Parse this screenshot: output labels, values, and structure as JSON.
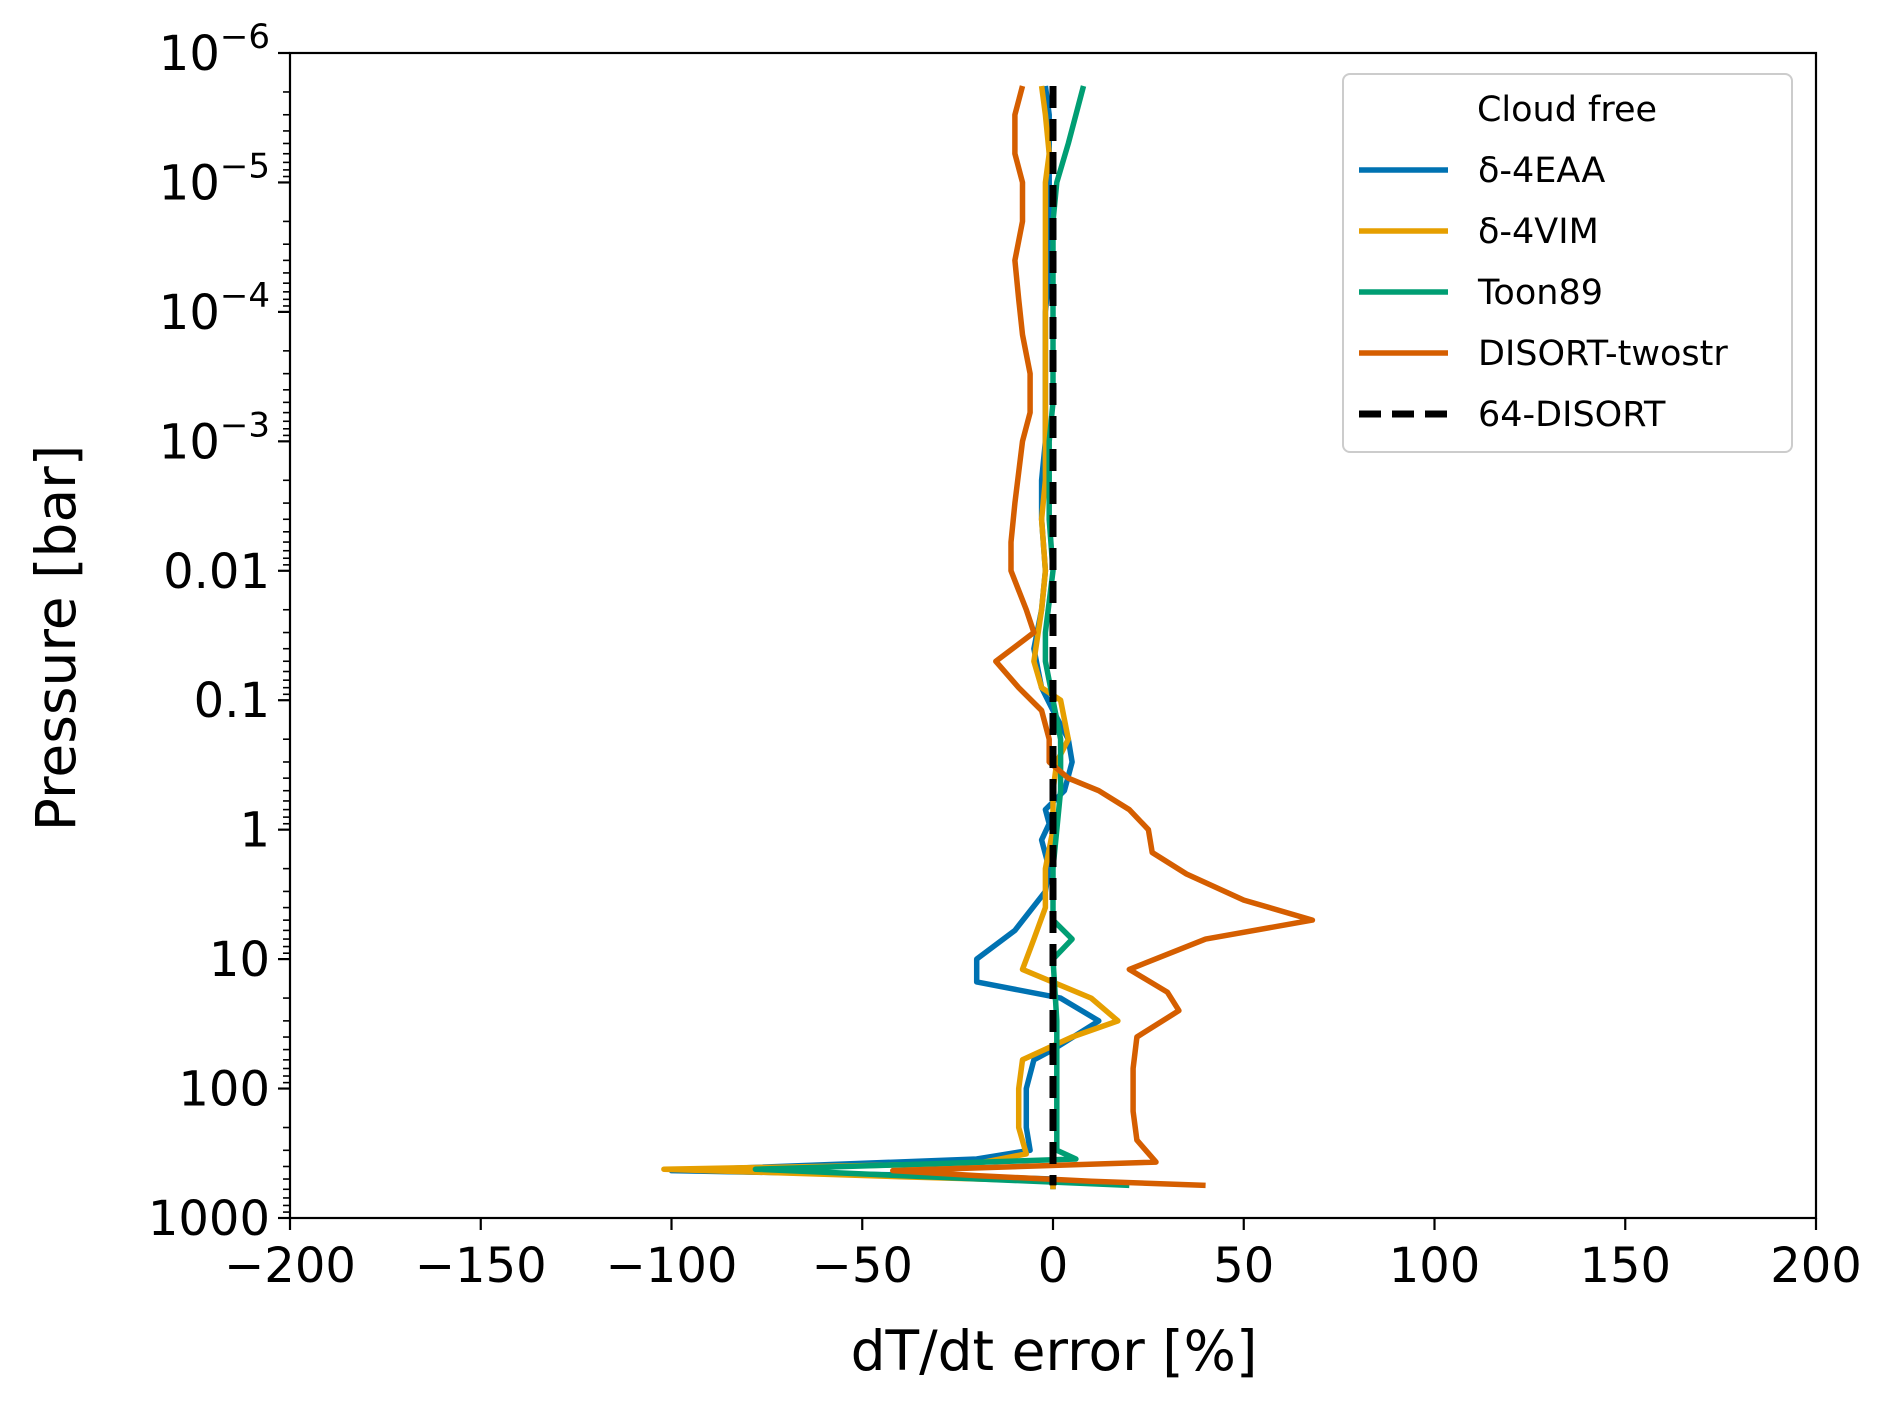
{
  "chart_data": {
    "type": "line",
    "xlabel": "dT/dt error [%]",
    "ylabel": "Pressure [bar]",
    "xlim": [
      -200,
      200
    ],
    "ylim": [
      1e-06,
      1000
    ],
    "yscale": "log",
    "y_inverted": true,
    "grid": false,
    "legend_position": "top-right",
    "legend_title": "Cloud free",
    "x_ticks": [
      -200,
      -150,
      -100,
      -50,
      0,
      50,
      100,
      150,
      200
    ],
    "x_tick_labels": [
      "−200",
      "−150",
      "−100",
      "−50",
      "0",
      "50",
      "100",
      "150",
      "200"
    ],
    "y_ticks": [
      {
        "value": 1e-06,
        "base": "10",
        "exp": "−6"
      },
      {
        "value": 1e-05,
        "base": "10",
        "exp": "−5"
      },
      {
        "value": 0.0001,
        "base": "10",
        "exp": "−4"
      },
      {
        "value": 0.001,
        "base": "10",
        "exp": "−3"
      },
      {
        "value": 0.01,
        "label": "0.01"
      },
      {
        "value": 0.1,
        "label": "0.1"
      },
      {
        "value": 1,
        "label": "1"
      },
      {
        "value": 10,
        "label": "10"
      },
      {
        "value": 100,
        "label": "100"
      },
      {
        "value": 1000,
        "label": "1000"
      }
    ],
    "series": [
      {
        "name": "δ-4EAA",
        "color": "#0072b2",
        "dash": "solid",
        "points": [
          [
            -2,
            1.8e-06
          ],
          [
            -1,
            3e-06
          ],
          [
            -1,
            6e-06
          ],
          [
            -1,
            1e-05
          ],
          [
            -1,
            2e-05
          ],
          [
            -1,
            5e-05
          ],
          [
            -2,
            0.0001
          ],
          [
            -2,
            0.0002
          ],
          [
            -2,
            0.0005
          ],
          [
            -2,
            0.001
          ],
          [
            -3,
            0.002
          ],
          [
            -3,
            0.004
          ],
          [
            -2,
            0.01
          ],
          [
            -3,
            0.02
          ],
          [
            -5,
            0.04
          ],
          [
            -3,
            0.08
          ],
          [
            0,
            0.12
          ],
          [
            4,
            0.2
          ],
          [
            5,
            0.3
          ],
          [
            3,
            0.5
          ],
          [
            -2,
            0.7
          ],
          [
            -1,
            0.9
          ],
          [
            -3,
            1.2
          ],
          [
            -1,
            2
          ],
          [
            -2,
            3
          ],
          [
            -10,
            6
          ],
          [
            -20,
            10
          ],
          [
            -20,
            15
          ],
          [
            2,
            20
          ],
          [
            12,
            30
          ],
          [
            0,
            50
          ],
          [
            -5,
            60
          ],
          [
            -7,
            100
          ],
          [
            -7,
            200
          ],
          [
            -6,
            300
          ],
          [
            -20,
            350
          ],
          [
            -100,
            430
          ],
          [
            -30,
            470
          ],
          [
            0,
            500
          ],
          [
            0,
            600
          ]
        ]
      },
      {
        "name": "δ-4VIM",
        "color": "#e69f00",
        "dash": "solid",
        "points": [
          [
            -3,
            1.8e-06
          ],
          [
            -2,
            3e-06
          ],
          [
            -1,
            6e-06
          ],
          [
            -2,
            1e-05
          ],
          [
            -2,
            2e-05
          ],
          [
            -2,
            5e-05
          ],
          [
            -2,
            0.0001
          ],
          [
            -2,
            0.0002
          ],
          [
            -2,
            0.0005
          ],
          [
            -2,
            0.001
          ],
          [
            -2,
            0.002
          ],
          [
            -3,
            0.004
          ],
          [
            -2,
            0.01
          ],
          [
            -3,
            0.02
          ],
          [
            -5,
            0.05
          ],
          [
            -3,
            0.08
          ],
          [
            2,
            0.1
          ],
          [
            4,
            0.2
          ],
          [
            1,
            0.3
          ],
          [
            0,
            0.5
          ],
          [
            0,
            1
          ],
          [
            -2,
            2
          ],
          [
            -2,
            4
          ],
          [
            -5,
            7
          ],
          [
            -8,
            12
          ],
          [
            10,
            20
          ],
          [
            17,
            30
          ],
          [
            5,
            40
          ],
          [
            -8,
            60
          ],
          [
            -9,
            100
          ],
          [
            -9,
            200
          ],
          [
            -7,
            320
          ],
          [
            -20,
            380
          ],
          [
            -102,
            420
          ],
          [
            -40,
            480
          ],
          [
            0,
            520
          ],
          [
            0,
            600
          ]
        ]
      },
      {
        "name": "Toon89",
        "color": "#009e73",
        "dash": "solid",
        "points": [
          [
            8,
            1.8e-06
          ],
          [
            6,
            3e-06
          ],
          [
            4,
            5e-06
          ],
          [
            1,
            1e-05
          ],
          [
            0,
            2e-05
          ],
          [
            0,
            5e-05
          ],
          [
            0,
            0.0001
          ],
          [
            0,
            0.0002
          ],
          [
            0,
            0.0005
          ],
          [
            -1,
            0.001
          ],
          [
            -1,
            0.002
          ],
          [
            -1,
            0.004
          ],
          [
            0,
            0.01
          ],
          [
            -2,
            0.03
          ],
          [
            -2,
            0.05
          ],
          [
            0,
            0.1
          ],
          [
            2,
            0.2
          ],
          [
            2,
            0.5
          ],
          [
            1,
            1
          ],
          [
            0,
            2
          ],
          [
            0,
            5
          ],
          [
            5,
            7
          ],
          [
            0,
            10
          ],
          [
            1,
            30
          ],
          [
            1,
            100
          ],
          [
            1,
            200
          ],
          [
            1,
            300
          ],
          [
            6,
            350
          ],
          [
            -30,
            380
          ],
          [
            -78,
            420
          ],
          [
            -40,
            470
          ],
          [
            20,
            560
          ]
        ]
      },
      {
        "name": "DISORT-twostr",
        "color": "#d55e00",
        "dash": "solid",
        "points": [
          [
            -8,
            1.8e-06
          ],
          [
            -10,
            3e-06
          ],
          [
            -10,
            6e-06
          ],
          [
            -8,
            1e-05
          ],
          [
            -8,
            2e-05
          ],
          [
            -10,
            4e-05
          ],
          [
            -9,
            8e-05
          ],
          [
            -8,
            0.00015
          ],
          [
            -6,
            0.0003
          ],
          [
            -6,
            0.0006
          ],
          [
            -8,
            0.001
          ],
          [
            -10,
            0.003
          ],
          [
            -11,
            0.006
          ],
          [
            -11,
            0.01
          ],
          [
            -7,
            0.02
          ],
          [
            -5,
            0.03
          ],
          [
            -15,
            0.05
          ],
          [
            -9,
            0.08
          ],
          [
            -3,
            0.12
          ],
          [
            -1,
            0.2
          ],
          [
            -1,
            0.3
          ],
          [
            4,
            0.4
          ],
          [
            12,
            0.5
          ],
          [
            20,
            0.7
          ],
          [
            25,
            1
          ],
          [
            26,
            1.5
          ],
          [
            35,
            2.2
          ],
          [
            50,
            3.5
          ],
          [
            68,
            5
          ],
          [
            40,
            7
          ],
          [
            20,
            12
          ],
          [
            30,
            18
          ],
          [
            33,
            25
          ],
          [
            22,
            40
          ],
          [
            21,
            70
          ],
          [
            21,
            150
          ],
          [
            22,
            250
          ],
          [
            27,
            370
          ],
          [
            -42,
            430
          ],
          [
            -20,
            470
          ],
          [
            10,
            520
          ],
          [
            40,
            560
          ]
        ]
      },
      {
        "name": "64-DISORT",
        "color": "#000000",
        "dash": "dashed",
        "points": [
          [
            0,
            1.8e-06
          ],
          [
            0,
            560
          ]
        ]
      }
    ]
  }
}
